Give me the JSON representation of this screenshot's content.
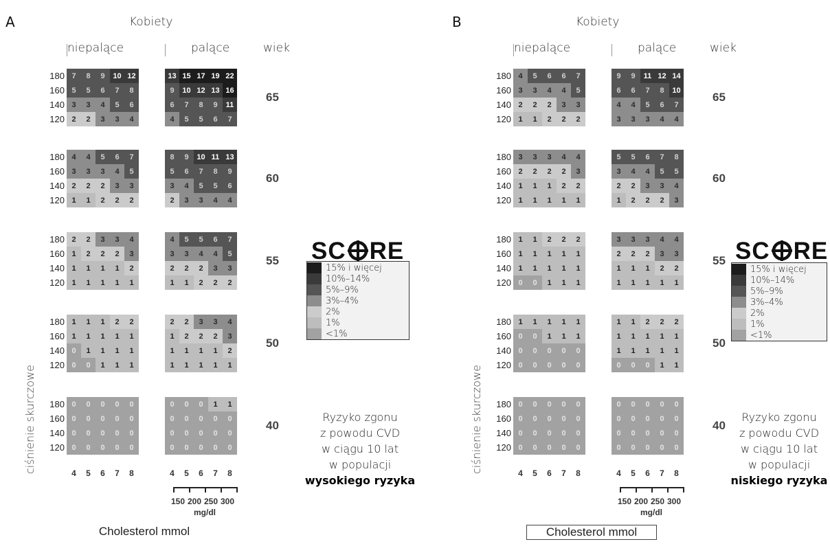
{
  "legend": [
    {
      "label": "15% i więcej",
      "color": "#1c1c1c"
    },
    {
      "label": "10%–14%",
      "color": "#3a3a3a"
    },
    {
      "label": "5%–9%",
      "color": "#555555"
    },
    {
      "label": "3%–4%",
      "color": "#8d8d8d"
    },
    {
      "label": "2%",
      "color": "#cbcbcb"
    },
    {
      "label": "1%",
      "color": "#bdbdbd"
    },
    {
      "label": "<1%",
      "color": "#a2a2a2"
    }
  ],
  "logo": {
    "left": "SC",
    "right": "RE"
  },
  "panels": [
    {
      "letter": "A",
      "title": "Kobiety",
      "nonsmoker_label": "niepalące",
      "smoker_label": "palące",
      "age_header": "wiek",
      "ylabel": "ciśnienie skurczowe",
      "bp_values": [
        "180",
        "160",
        "140",
        "120"
      ],
      "chol_ticks": [
        "4",
        "5",
        "6",
        "7",
        "8"
      ],
      "mgdl_ticks": [
        "150",
        "200",
        "250",
        "300"
      ],
      "mgdl_unit": "mg/dl",
      "chol_label": "Cholesterol  mmol",
      "caption": [
        "Ryzyko zgonu",
        "z powodu CVD",
        "w ciągu 10 lat",
        "w populacji"
      ],
      "caption_bold": "wysokiego ryzyka",
      "blocks": [
        {
          "age": "65",
          "nonsmoker": [
            [
              "7",
              "8",
              "9",
              "10",
              "12"
            ],
            [
              "5",
              "5",
              "6",
              "7",
              "8"
            ],
            [
              "3",
              "3",
              "4",
              "5",
              "6"
            ],
            [
              "2",
              "2",
              "3",
              "3",
              "4"
            ]
          ],
          "smoker": [
            [
              "13",
              "15",
              "17",
              "19",
              "22"
            ],
            [
              "9",
              "10",
              "12",
              "13",
              "16"
            ],
            [
              "6",
              "7",
              "8",
              "9",
              "11"
            ],
            [
              "4",
              "5",
              "5",
              "6",
              "7"
            ]
          ]
        },
        {
          "age": "60",
          "nonsmoker": [
            [
              "4",
              "4",
              "5",
              "6",
              "7"
            ],
            [
              "3",
              "3",
              "3",
              "4",
              "5"
            ],
            [
              "2",
              "2",
              "2",
              "3",
              "3"
            ],
            [
              "1",
              "1",
              "2",
              "2",
              "2"
            ]
          ],
          "smoker": [
            [
              "8",
              "9",
              "10",
              "11",
              "13"
            ],
            [
              "5",
              "6",
              "7",
              "8",
              "9"
            ],
            [
              "3",
              "4",
              "5",
              "5",
              "6"
            ],
            [
              "2",
              "3",
              "3",
              "4",
              "4"
            ]
          ]
        },
        {
          "age": "55",
          "nonsmoker": [
            [
              "2",
              "2",
              "3",
              "3",
              "4"
            ],
            [
              "1",
              "2",
              "2",
              "2",
              "3"
            ],
            [
              "1",
              "1",
              "1",
              "1",
              "2"
            ],
            [
              "1",
              "1",
              "1",
              "1",
              "1"
            ]
          ],
          "smoker": [
            [
              "4",
              "5",
              "5",
              "6",
              "7"
            ],
            [
              "3",
              "3",
              "4",
              "4",
              "5"
            ],
            [
              "2",
              "2",
              "2",
              "3",
              "3"
            ],
            [
              "1",
              "1",
              "2",
              "2",
              "2"
            ]
          ]
        },
        {
          "age": "50",
          "nonsmoker": [
            [
              "1",
              "1",
              "1",
              "2",
              "2"
            ],
            [
              "1",
              "1",
              "1",
              "1",
              "1"
            ],
            [
              "0",
              "1",
              "1",
              "1",
              "1"
            ],
            [
              "0",
              "0",
              "1",
              "1",
              "1"
            ]
          ],
          "smoker": [
            [
              "2",
              "2",
              "3",
              "3",
              "4"
            ],
            [
              "1",
              "2",
              "2",
              "2",
              "3"
            ],
            [
              "1",
              "1",
              "1",
              "1",
              "2"
            ],
            [
              "1",
              "1",
              "1",
              "1",
              "1"
            ]
          ]
        },
        {
          "age": "40",
          "nonsmoker": [
            [
              "0",
              "0",
              "0",
              "0",
              "0"
            ],
            [
              "0",
              "0",
              "0",
              "0",
              "0"
            ],
            [
              "0",
              "0",
              "0",
              "0",
              "0"
            ],
            [
              "0",
              "0",
              "0",
              "0",
              "0"
            ]
          ],
          "smoker": [
            [
              "0",
              "0",
              "0",
              "1",
              "1"
            ],
            [
              "0",
              "0",
              "0",
              "0",
              "0"
            ],
            [
              "0",
              "0",
              "0",
              "0",
              "0"
            ],
            [
              "0",
              "0",
              "0",
              "0",
              "0"
            ]
          ]
        }
      ]
    },
    {
      "letter": "B",
      "title": "Kobiety",
      "nonsmoker_label": "niepalące",
      "smoker_label": "palące",
      "age_header": "wiek",
      "ylabel": "ciśnienie skurczowe",
      "bp_values": [
        "180",
        "160",
        "140",
        "120"
      ],
      "chol_ticks": [
        "4",
        "5",
        "6",
        "7",
        "8"
      ],
      "mgdl_ticks": [
        "150",
        "200",
        "250",
        "300"
      ],
      "mgdl_unit": "mg/dl",
      "chol_label": "Cholesterol  mmol",
      "caption": [
        "Ryzyko zgonu",
        "z powodu CVD",
        "w ciągu 10 lat",
        "w populacji"
      ],
      "caption_bold": "niskiego ryzyka",
      "blocks": [
        {
          "age": "65",
          "nonsmoker": [
            [
              "4",
              "5",
              "6",
              "6",
              "7"
            ],
            [
              "3",
              "3",
              "4",
              "4",
              "5"
            ],
            [
              "2",
              "2",
              "2",
              "3",
              "3"
            ],
            [
              "1",
              "1",
              "2",
              "2",
              "2"
            ]
          ],
          "smoker": [
            [
              "9",
              "9",
              "11",
              "12",
              "14"
            ],
            [
              "6",
              "6",
              "7",
              "8",
              "10"
            ],
            [
              "4",
              "4",
              "5",
              "6",
              "7"
            ],
            [
              "3",
              "3",
              "3",
              "4",
              "4"
            ]
          ]
        },
        {
          "age": "60",
          "nonsmoker": [
            [
              "3",
              "3",
              "3",
              "4",
              "4"
            ],
            [
              "2",
              "2",
              "2",
              "2",
              "3"
            ],
            [
              "1",
              "1",
              "1",
              "2",
              "2"
            ],
            [
              "1",
              "1",
              "1",
              "1",
              "1"
            ]
          ],
          "smoker": [
            [
              "5",
              "5",
              "6",
              "7",
              "8"
            ],
            [
              "3",
              "4",
              "4",
              "5",
              "5"
            ],
            [
              "2",
              "2",
              "3",
              "3",
              "4"
            ],
            [
              "1",
              "2",
              "2",
              "2",
              "3"
            ]
          ]
        },
        {
          "age": "55",
          "nonsmoker": [
            [
              "1",
              "1",
              "2",
              "2",
              "2"
            ],
            [
              "1",
              "1",
              "1",
              "1",
              "1"
            ],
            [
              "1",
              "1",
              "1",
              "1",
              "1"
            ],
            [
              "0",
              "0",
              "1",
              "1",
              "1"
            ]
          ],
          "smoker": [
            [
              "3",
              "3",
              "3",
              "4",
              "4"
            ],
            [
              "2",
              "2",
              "2",
              "3",
              "3"
            ],
            [
              "1",
              "1",
              "1",
              "2",
              "2"
            ],
            [
              "1",
              "1",
              "1",
              "1",
              "1"
            ]
          ]
        },
        {
          "age": "50",
          "nonsmoker": [
            [
              "1",
              "1",
              "1",
              "1",
              "1"
            ],
            [
              "0",
              "0",
              "1",
              "1",
              "1"
            ],
            [
              "0",
              "0",
              "0",
              "0",
              "0"
            ],
            [
              "0",
              "0",
              "0",
              "0",
              "0"
            ]
          ],
          "smoker": [
            [
              "1",
              "1",
              "2",
              "2",
              "2"
            ],
            [
              "1",
              "1",
              "1",
              "1",
              "1"
            ],
            [
              "1",
              "1",
              "1",
              "1",
              "1"
            ],
            [
              "0",
              "0",
              "0",
              "1",
              "1"
            ]
          ]
        },
        {
          "age": "40",
          "nonsmoker": [
            [
              "0",
              "0",
              "0",
              "0",
              "0"
            ],
            [
              "0",
              "0",
              "0",
              "0",
              "0"
            ],
            [
              "0",
              "0",
              "0",
              "0",
              "0"
            ],
            [
              "0",
              "0",
              "0",
              "0",
              "0"
            ]
          ],
          "smoker": [
            [
              "0",
              "0",
              "0",
              "0",
              "0"
            ],
            [
              "0",
              "0",
              "0",
              "0",
              "0"
            ],
            [
              "0",
              "0",
              "0",
              "0",
              "0"
            ],
            [
              "0",
              "0",
              "0",
              "0",
              "0"
            ]
          ]
        }
      ]
    }
  ]
}
